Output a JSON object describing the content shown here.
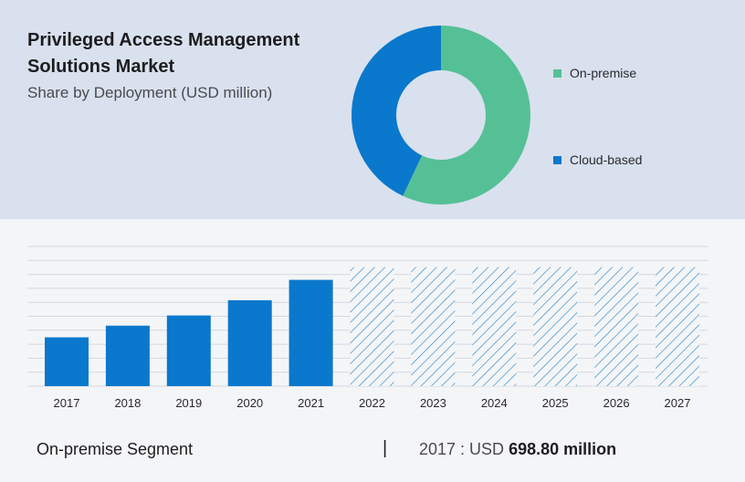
{
  "header": {
    "title": "Privileged Access Management Solutions Market",
    "subtitle": "Share by Deployment (USD million)"
  },
  "colors": {
    "on_premise": "#55c096",
    "cloud_based": "#0a78cc",
    "hatch": "#2c88c9",
    "gridline": "#d4d8e0"
  },
  "chart_data": [
    {
      "type": "pie",
      "variant": "donut",
      "title": "",
      "slices": [
        {
          "name": "On-premise",
          "value": 57
        },
        {
          "name": "Cloud-based",
          "value": 43
        }
      ],
      "legend": [
        "On-premise",
        "Cloud-based"
      ],
      "legend_position": "right"
    },
    {
      "type": "bar",
      "title": "",
      "xlabel": "",
      "ylabel": "",
      "grid": true,
      "categories": [
        "2017",
        "2018",
        "2019",
        "2020",
        "2021",
        "2022",
        "2023",
        "2024",
        "2025",
        "2026",
        "2027"
      ],
      "values": [
        698.8,
        866,
        1012,
        1230,
        1522,
        null,
        null,
        null,
        null,
        null,
        null
      ],
      "forecast_categories": [
        "2022",
        "2023",
        "2024",
        "2025",
        "2026",
        "2027"
      ],
      "forecast_style": "hatched",
      "ylim": [
        0,
        2000
      ]
    }
  ],
  "footer": {
    "segment_label": "On-premise Segment",
    "separator": "|",
    "year_prefix": "2017 : USD",
    "value_text": "698.80 million"
  }
}
